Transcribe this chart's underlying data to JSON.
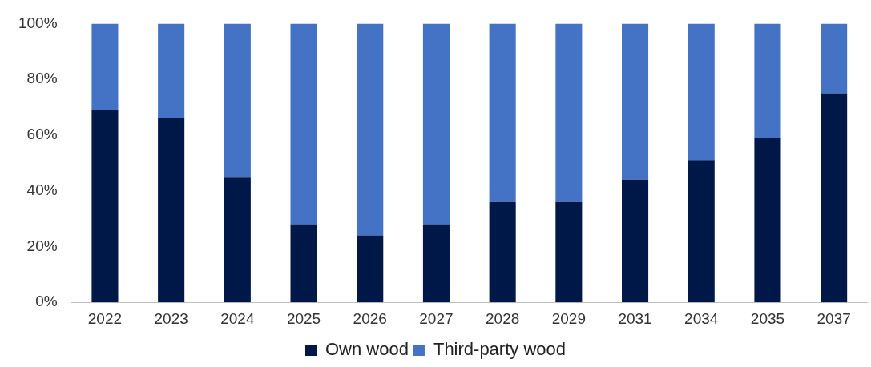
{
  "chart_data": {
    "type": "bar",
    "stacked": true,
    "categories": [
      "2022",
      "2023",
      "2024",
      "2025",
      "2026",
      "2027",
      "2028",
      "2029",
      "2031",
      "2034",
      "2035",
      "2037"
    ],
    "series": [
      {
        "name": "Own wood",
        "color": "#001847",
        "values": [
          69,
          66,
          45,
          28,
          24,
          28,
          36,
          36,
          44,
          51,
          59,
          75
        ]
      },
      {
        "name": "Third-party wood",
        "color": "#4472c4",
        "values": [
          31,
          34,
          55,
          72,
          76,
          72,
          64,
          64,
          56,
          49,
          41,
          25
        ]
      }
    ],
    "ylim": [
      0,
      100
    ],
    "yticks": [
      {
        "value": 0,
        "label": "0%"
      },
      {
        "value": 20,
        "label": "20%"
      },
      {
        "value": 40,
        "label": "40%"
      },
      {
        "value": 60,
        "label": "60%"
      },
      {
        "value": 80,
        "label": "80%"
      },
      {
        "value": 100,
        "label": "100%"
      }
    ],
    "grid": false,
    "legend": "bottom"
  }
}
